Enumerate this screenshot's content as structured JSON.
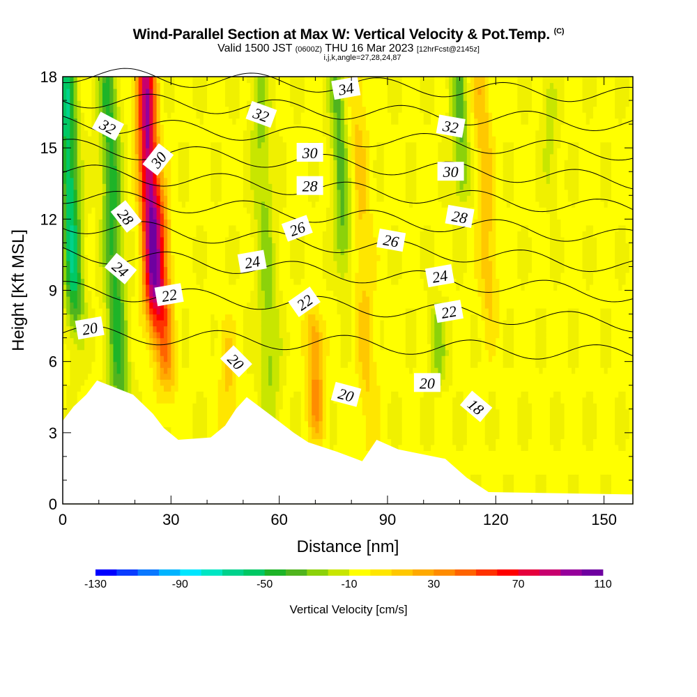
{
  "title": {
    "main": "Wind-Parallel Section at Max W: Vertical Velocity & Pot.Temp.",
    "copyright": "(C)",
    "valid_prefix": "Valid 1500 JST",
    "valid_z": "(0600Z)",
    "valid_date": "THU 16 Mar 2023",
    "forecast": "[12hrFcst@2145z]",
    "indices": "i,j,k,angle=27,28,24,87"
  },
  "colors": {
    "palette": [
      "#0000ff",
      "#0a3cff",
      "#0a78ff",
      "#00b4ff",
      "#00e6ff",
      "#00e6c3",
      "#00d28c",
      "#00c864",
      "#1eb428",
      "#50b41e",
      "#8cd20a",
      "#c8e600",
      "#f0f000",
      "#ffff00",
      "#ffe600",
      "#ffc800",
      "#ffaa00",
      "#ff8c00",
      "#ff6400",
      "#ff3200",
      "#ff0000",
      "#e6003c",
      "#c8006e",
      "#96009b",
      "#6e00a0"
    ],
    "terrain": "#ffffff",
    "contour": "#000000"
  },
  "chart_data": {
    "type": "heatmap",
    "xlabel": "Distance [nm]",
    "ylabel": "Height [Kft MSL]",
    "xlim": [
      0,
      158
    ],
    "ylim": [
      0,
      18
    ],
    "xticks": [
      0,
      30,
      60,
      90,
      120,
      150
    ],
    "yticks": [
      0,
      3,
      6,
      9,
      12,
      15,
      18
    ],
    "colorbar": {
      "label": "Vertical Velocity [cm/s]",
      "min": -130,
      "max": 110,
      "step": 10,
      "tick_values": [
        -130,
        -90,
        -50,
        -10,
        30,
        70,
        110
      ]
    },
    "velocity_features": [
      {
        "x": 2,
        "z": [
          9,
          18
        ],
        "value": -60
      },
      {
        "x": 14,
        "z": [
          5,
          18
        ],
        "value": -45
      },
      {
        "x": 24,
        "z": [
          9,
          18
        ],
        "value": 100
      },
      {
        "x": 28,
        "z": [
          6,
          12
        ],
        "value": 40
      },
      {
        "x": 56,
        "z": [
          5,
          18
        ],
        "value": -25
      },
      {
        "x": 46,
        "z": [
          2.5,
          6.5
        ],
        "value": 20
      },
      {
        "x": 70,
        "z": [
          4,
          7
        ],
        "value": 40
      },
      {
        "x": 77,
        "z": [
          11,
          18
        ],
        "value": -35
      },
      {
        "x": 83,
        "z": [
          4,
          18
        ],
        "value": 20
      },
      {
        "x": 110,
        "z": [
          14,
          18
        ],
        "value": -35
      },
      {
        "x": 104,
        "z": [
          6,
          7.5
        ],
        "value": -25
      },
      {
        "x": 117,
        "z": [
          9,
          18
        ],
        "value": 25
      },
      {
        "x": 135,
        "z": [
          14,
          17
        ],
        "value": -15
      }
    ],
    "terrain_height": [
      {
        "x": 0,
        "z": 3.5
      },
      {
        "x": 3,
        "z": 4.1
      },
      {
        "x": 6.5,
        "z": 4.6
      },
      {
        "x": 9.5,
        "z": 5.2
      },
      {
        "x": 19.5,
        "z": 4.6
      },
      {
        "x": 25,
        "z": 3.8
      },
      {
        "x": 28,
        "z": 3.2
      },
      {
        "x": 32,
        "z": 2.7
      },
      {
        "x": 41,
        "z": 2.8
      },
      {
        "x": 45,
        "z": 3.3
      },
      {
        "x": 48,
        "z": 4.0
      },
      {
        "x": 51,
        "z": 4.5
      },
      {
        "x": 58,
        "z": 3.7
      },
      {
        "x": 64,
        "z": 3.0
      },
      {
        "x": 68,
        "z": 2.6
      },
      {
        "x": 76,
        "z": 2.2
      },
      {
        "x": 83,
        "z": 1.8
      },
      {
        "x": 87,
        "z": 2.7
      },
      {
        "x": 93,
        "z": 2.3
      },
      {
        "x": 106,
        "z": 1.9
      },
      {
        "x": 112,
        "z": 1.1
      },
      {
        "x": 118,
        "z": 0.5
      },
      {
        "x": 158,
        "z": 0.4
      }
    ],
    "contour_labels": [
      {
        "text": "32",
        "x": 12.5,
        "z": 15.9,
        "angle": 28
      },
      {
        "text": "30",
        "x": 26.5,
        "z": 14.5,
        "angle": -52
      },
      {
        "text": "28",
        "x": 17.5,
        "z": 12.1,
        "angle": 52
      },
      {
        "text": "24",
        "x": 16,
        "z": 9.9,
        "angle": 40
      },
      {
        "text": "22",
        "x": 29.5,
        "z": 8.8,
        "angle": -10
      },
      {
        "text": "20",
        "x": 7.5,
        "z": 7.4,
        "angle": -10
      },
      {
        "text": "20",
        "x": 48,
        "z": 6.0,
        "angle": 45
      },
      {
        "text": "32",
        "x": 55,
        "z": 16.4,
        "angle": 20
      },
      {
        "text": "30",
        "x": 68.5,
        "z": 14.8,
        "angle": 0
      },
      {
        "text": "28",
        "x": 68.5,
        "z": 13.4,
        "angle": 0
      },
      {
        "text": "26",
        "x": 65,
        "z": 11.6,
        "angle": -20
      },
      {
        "text": "24",
        "x": 52.5,
        "z": 10.2,
        "angle": -10
      },
      {
        "text": "22",
        "x": 67,
        "z": 8.5,
        "angle": -35
      },
      {
        "text": "34",
        "x": 78.5,
        "z": 17.5,
        "angle": -10
      },
      {
        "text": "26",
        "x": 91,
        "z": 11.1,
        "angle": 10
      },
      {
        "text": "20",
        "x": 78.5,
        "z": 4.6,
        "angle": 15
      },
      {
        "text": "32",
        "x": 107.5,
        "z": 15.9,
        "angle": 10
      },
      {
        "text": "30",
        "x": 107.5,
        "z": 14.0,
        "angle": 0
      },
      {
        "text": "28",
        "x": 110,
        "z": 12.1,
        "angle": 10
      },
      {
        "text": "24",
        "x": 104.5,
        "z": 9.6,
        "angle": -10
      },
      {
        "text": "22",
        "x": 107,
        "z": 8.1,
        "angle": -10
      },
      {
        "text": "20",
        "x": 101,
        "z": 5.1,
        "angle": 0
      },
      {
        "text": "18",
        "x": 114.5,
        "z": 4.1,
        "angle": 40
      }
    ],
    "isentropes": [
      {
        "z0": 6.3,
        "rise": 1.0
      },
      {
        "z0": 7.6,
        "rise": 1.6
      },
      {
        "z0": 8.8,
        "rise": 2.0
      },
      {
        "z0": 10.0,
        "rise": 2.0
      },
      {
        "z0": 11.2,
        "rise": 2.0
      },
      {
        "z0": 12.4,
        "rise": 1.8
      },
      {
        "z0": 13.6,
        "rise": 1.6
      },
      {
        "z0": 14.8,
        "rise": 1.4
      },
      {
        "z0": 16.0,
        "rise": 1.2
      },
      {
        "z0": 17.2,
        "rise": 1.0
      }
    ]
  }
}
